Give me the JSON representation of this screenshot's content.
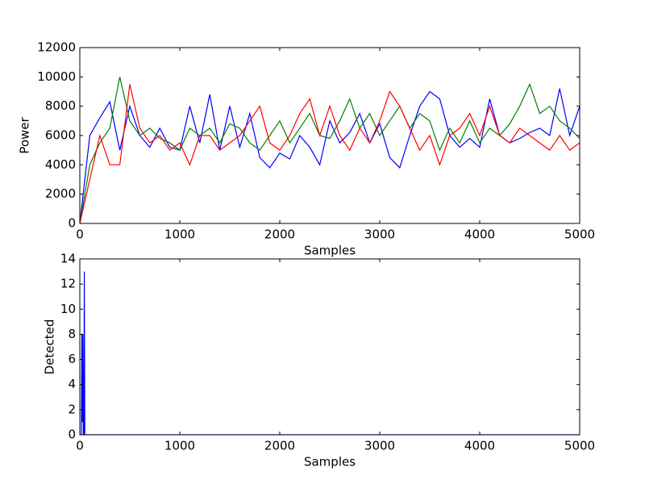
{
  "chart_data": [
    {
      "type": "line",
      "x_label": "Samples",
      "y_label": "Power",
      "x": [
        0,
        100,
        200,
        300,
        400,
        500,
        600,
        700,
        800,
        900,
        1000,
        1100,
        1200,
        1300,
        1400,
        1500,
        1600,
        1700,
        1800,
        1900,
        2000,
        2100,
        2200,
        2300,
        2400,
        2500,
        2600,
        2700,
        2800,
        2900,
        3000,
        3100,
        3200,
        3300,
        3400,
        3500,
        3600,
        3700,
        3800,
        3900,
        4000,
        4100,
        4200,
        4300,
        4400,
        4500,
        4600,
        4700,
        4800,
        4900,
        5000
      ],
      "series": [
        {
          "color": "#0000ff",
          "values": [
            0,
            6000,
            7200,
            8300,
            5000,
            8000,
            6000,
            5200,
            6500,
            5200,
            5000,
            8000,
            5500,
            8800,
            5000,
            8000,
            5200,
            7500,
            4500,
            3800,
            4800,
            4400,
            6000,
            5200,
            4000,
            7000,
            5500,
            6200,
            7500,
            5500,
            6800,
            4500,
            3800,
            6000,
            8000,
            9000,
            8500,
            6000,
            5200,
            5800,
            5200,
            8500,
            6000,
            5500,
            5800,
            6200,
            6500,
            6000,
            9200,
            6000,
            8000
          ]
        },
        {
          "color": "#008000",
          "values": [
            0,
            4000,
            5500,
            6500,
            10000,
            7000,
            6000,
            6500,
            5800,
            5500,
            5000,
            6500,
            6000,
            6500,
            5500,
            6800,
            6500,
            5500,
            5000,
            6000,
            7000,
            5500,
            6500,
            7500,
            6000,
            5800,
            7000,
            8500,
            6500,
            7500,
            6000,
            7000,
            8000,
            6500,
            7500,
            7000,
            5000,
            6500,
            5500,
            7000,
            5500,
            6500,
            6000,
            6800,
            8000,
            9500,
            7500,
            8000,
            7000,
            6500,
            5800
          ]
        },
        {
          "color": "#ff0000",
          "values": [
            0,
            3000,
            6000,
            4000,
            4000,
            9500,
            6500,
            5500,
            6000,
            5000,
            5500,
            4000,
            6000,
            6000,
            5000,
            5500,
            6000,
            7000,
            8000,
            5500,
            5000,
            6000,
            7500,
            8500,
            6000,
            8000,
            6000,
            5000,
            6500,
            5500,
            7000,
            9000,
            8000,
            6500,
            5000,
            6000,
            4000,
            6000,
            6500,
            7500,
            6000,
            8000,
            6000,
            5500,
            6500,
            6000,
            5500,
            5000,
            6000,
            5000,
            5500
          ]
        }
      ],
      "xlim": [
        0,
        5000
      ],
      "xticks": [
        0,
        1000,
        2000,
        3000,
        4000,
        5000
      ],
      "ylim": [
        0,
        12000
      ],
      "yticks": [
        0,
        2000,
        4000,
        6000,
        8000,
        10000,
        12000
      ]
    },
    {
      "type": "line",
      "x_label": "Samples",
      "y_label": "Detected",
      "x": [
        0,
        15,
        20,
        25,
        30,
        35,
        40,
        45,
        50,
        5000
      ],
      "series": [
        {
          "color": "#0000ff",
          "values": [
            0,
            0,
            8,
            1,
            8,
            0,
            0,
            13,
            0,
            0
          ]
        }
      ],
      "xlim": [
        0,
        5000
      ],
      "xticks": [
        0,
        1000,
        2000,
        3000,
        4000,
        5000
      ],
      "ylim": [
        0,
        14
      ],
      "yticks": [
        0,
        2,
        4,
        6,
        8,
        10,
        12,
        14
      ]
    }
  ]
}
